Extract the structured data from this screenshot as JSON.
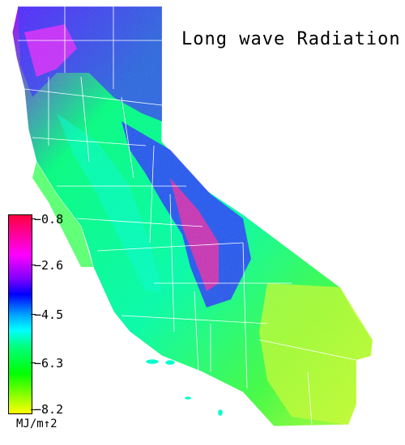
{
  "title": "Long wave Radiation",
  "legend": {
    "ticks": [
      "−0.8",
      "−2.6",
      "−4.5",
      "−6.3",
      "−8.2"
    ],
    "units": "MJ/m↑2",
    "colors": [
      "#ff0040",
      "#ff00ff",
      "#0000ff",
      "#00ffff",
      "#00ff00",
      "#ffff00"
    ]
  }
}
